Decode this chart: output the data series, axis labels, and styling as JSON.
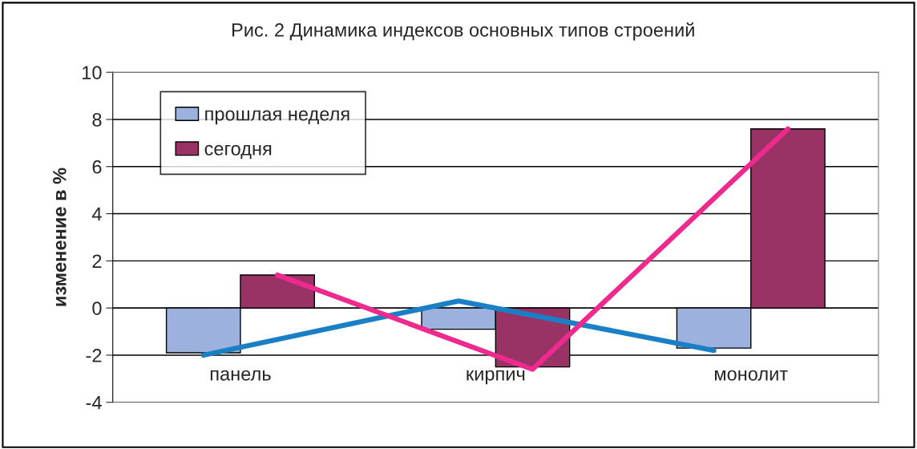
{
  "chart_data": {
    "type": "bar",
    "title": "Рис. 2 Динамика индексов основных типов строений",
    "ylabel": "изменение в %",
    "categories": [
      "панель",
      "кирпич",
      "монолит"
    ],
    "series": [
      {
        "name": "прошлая неделя",
        "color": "#9db1de",
        "values": [
          -1.9,
          -0.9,
          -1.7
        ]
      },
      {
        "name": "сегодня",
        "color": "#993366",
        "values": [
          1.4,
          -2.5,
          7.6
        ]
      },
      {
        "type": "line",
        "color": "#1b7fc6",
        "values": [
          -2.0,
          0.3,
          -1.8
        ]
      },
      {
        "type": "line",
        "color": "#ee2a8e",
        "values": [
          1.4,
          -2.6,
          7.6
        ]
      }
    ],
    "ylim": [
      -4,
      10
    ],
    "yticks": [
      -4,
      -2,
      0,
      2,
      4,
      6,
      8,
      10
    ],
    "grid": "y",
    "legend": "top left"
  }
}
